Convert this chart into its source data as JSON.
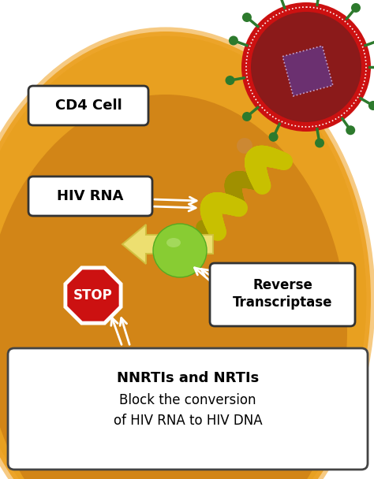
{
  "bg_color": "#ffffff",
  "cell_color_light": "#E8A020",
  "cell_color_dark": "#C07010",
  "virus_ring_color": "#CC1111",
  "virus_body_color": "#8B1A1A",
  "virus_inner_color": "#6B3070",
  "spike_color": "#2D7A2D",
  "rna_color1": "#C8C000",
  "rna_color2": "#A09000",
  "enzyme_color": "#88CC33",
  "enzyme_hi": "#AADD66",
  "stop_red": "#CC1111",
  "stop_text": "#ffffff",
  "arrow_fill": "#F0E878",
  "arrow_edge": "#D0C040",
  "white_arrow": "#ffffff",
  "particle_color1": "#CC8833",
  "particle_color2": "#AA5588",
  "label_bg": "#ffffff",
  "label_edge": "#555555",
  "cd4_label": "CD4 Cell",
  "hiv_rna_label": "HIV RNA",
  "rt_line1": "Reverse",
  "rt_line2": "Transcriptase",
  "stop_label": "STOP",
  "title_line1": "NNRTIs and NRTIs",
  "title_line2": "Block the conversion",
  "title_line3": "of HIV RNA to HIV DNA"
}
